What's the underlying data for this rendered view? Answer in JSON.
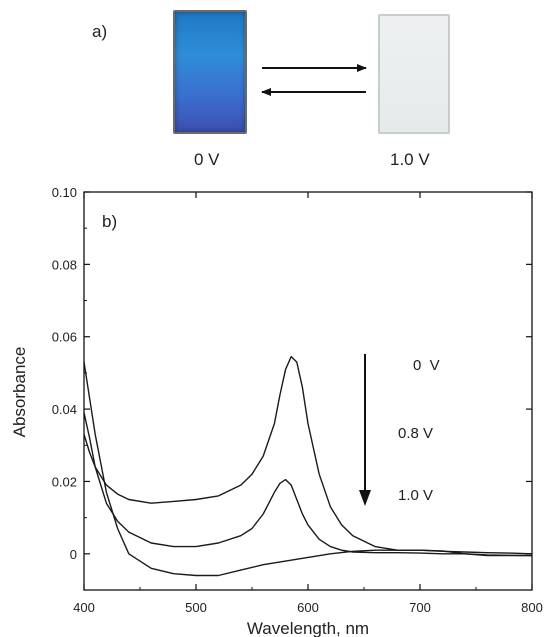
{
  "panel_a": {
    "label": "a)",
    "left_state": "0 V",
    "right_state": "1.0 V"
  },
  "chart_data": {
    "type": "line",
    "panel_label": "b)",
    "title": "",
    "xlabel": "Wavelength, nm",
    "ylabel": "Absorbance",
    "xlim": [
      400,
      800
    ],
    "ylim": [
      -0.01,
      0.1
    ],
    "xticks": [
      400,
      500,
      600,
      700,
      800
    ],
    "yticks": [
      0,
      0.02,
      0.04,
      0.06,
      0.08,
      0.1
    ],
    "ytick_labels": [
      "0",
      "0.02",
      "0.04",
      "0.06",
      "0.08",
      "0.10"
    ],
    "annotations": [
      "0  V",
      "0.8 V",
      "1.0 V"
    ],
    "arrow": "downward",
    "series": [
      {
        "name": "0 V",
        "x": [
          400,
          405,
          410,
          420,
          430,
          440,
          460,
          480,
          500,
          520,
          540,
          550,
          560,
          570,
          575,
          580,
          585,
          590,
          595,
          600,
          610,
          620,
          630,
          640,
          660,
          680,
          700,
          720,
          740,
          760,
          780,
          800
        ],
        "y": [
          0.033,
          0.028,
          0.024,
          0.019,
          0.0165,
          0.015,
          0.014,
          0.0145,
          0.015,
          0.016,
          0.019,
          0.022,
          0.027,
          0.036,
          0.044,
          0.051,
          0.0545,
          0.053,
          0.046,
          0.036,
          0.022,
          0.013,
          0.008,
          0.005,
          0.002,
          0.001,
          0.001,
          0.0007,
          0.0005,
          0.0003,
          0.0002,
          0.0
        ]
      },
      {
        "name": "0.8 V",
        "x": [
          400,
          405,
          410,
          420,
          430,
          440,
          460,
          480,
          500,
          520,
          540,
          550,
          560,
          565,
          570,
          575,
          580,
          585,
          590,
          595,
          600,
          610,
          620,
          630,
          640,
          660,
          680,
          700,
          720,
          740,
          760,
          780,
          800
        ],
        "y": [
          0.039,
          0.032,
          0.024,
          0.014,
          0.009,
          0.006,
          0.003,
          0.002,
          0.002,
          0.003,
          0.005,
          0.007,
          0.011,
          0.014,
          0.017,
          0.0195,
          0.0205,
          0.019,
          0.015,
          0.011,
          0.008,
          0.004,
          0.002,
          0.001,
          0.0005,
          0.0003,
          0.0003,
          0.0002,
          0.0,
          0.0,
          -0.0005,
          -0.0005,
          -0.0005
        ]
      },
      {
        "name": "1.0 V",
        "x": [
          400,
          405,
          410,
          420,
          430,
          440,
          460,
          480,
          500,
          520,
          540,
          560,
          580,
          600,
          620,
          640,
          660,
          680,
          700,
          720,
          740,
          760,
          780,
          800
        ],
        "y": [
          0.053,
          0.043,
          0.033,
          0.017,
          0.007,
          0.0,
          -0.004,
          -0.0055,
          -0.006,
          -0.006,
          -0.0045,
          -0.003,
          -0.002,
          -0.001,
          0.0,
          0.0007,
          0.001,
          0.001,
          0.001,
          0.0008,
          0.0,
          -0.0003,
          -0.0004,
          -0.0005
        ]
      }
    ]
  }
}
